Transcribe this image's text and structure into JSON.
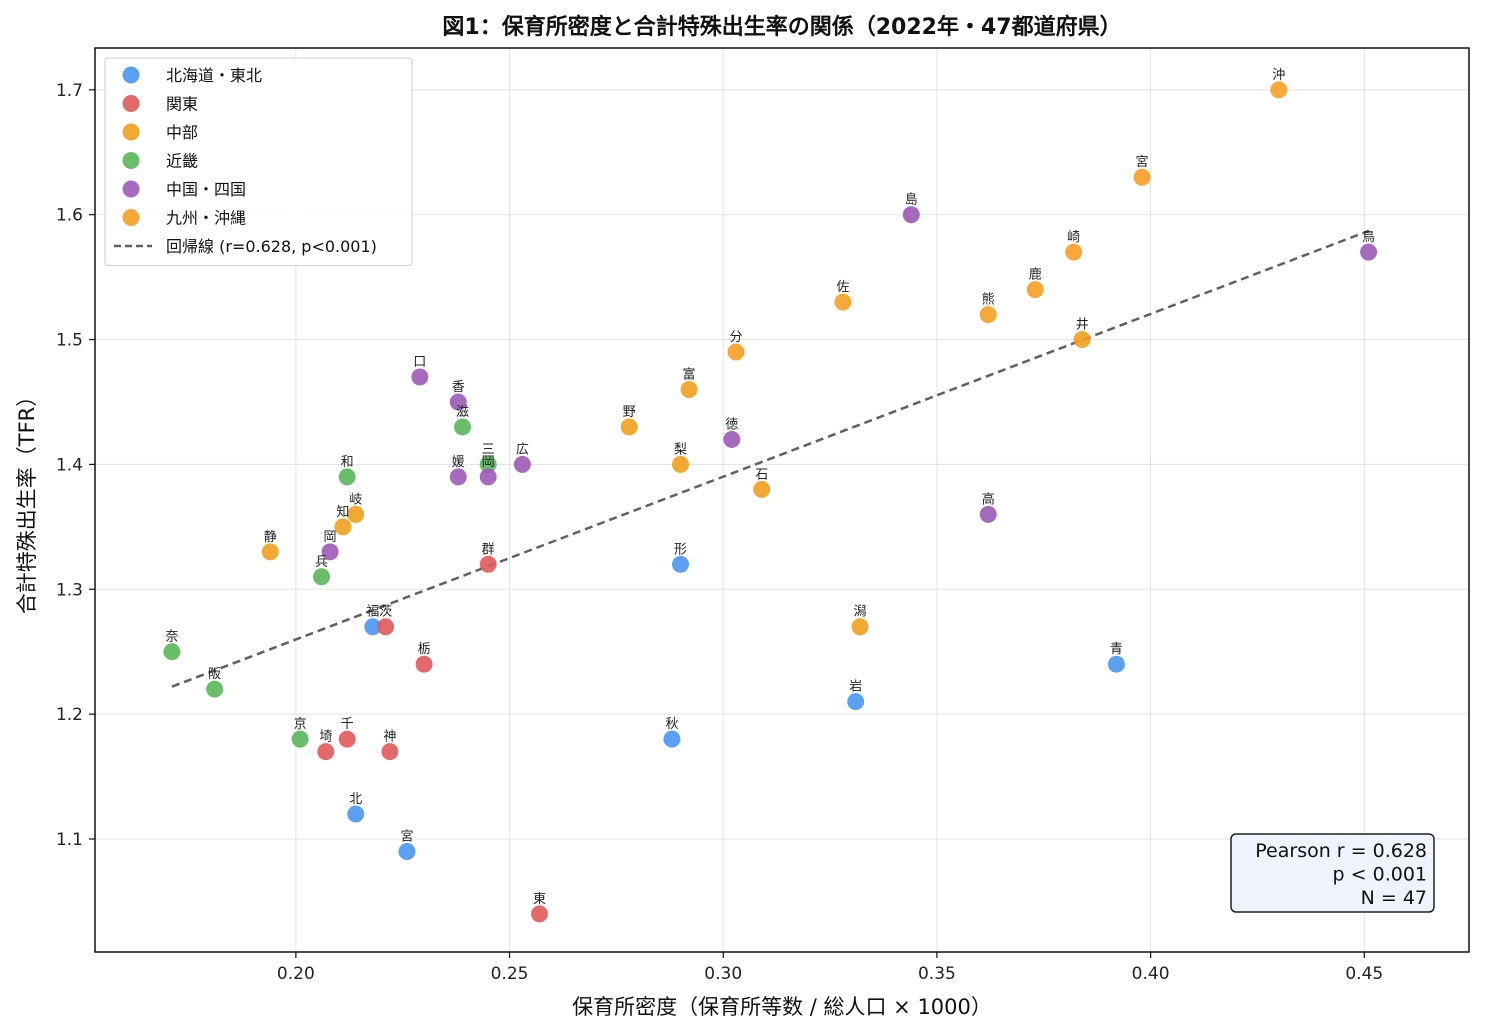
{
  "chart_data": {
    "type": "scatter",
    "title": "図1：保育所密度と合計特殊出生率の関係（2022年・47都道府県）",
    "xlabel": "保育所密度（保育所等数 / 総人口 × 1000）",
    "ylabel": "合計特殊出生率（TFR）",
    "xlim": [
      0.153,
      0.4745
    ],
    "ylim": [
      1.0095,
      1.7335
    ],
    "xticks": [
      0.2,
      0.25,
      0.3,
      0.35,
      0.4,
      0.45
    ],
    "xtick_labels": [
      "0.20",
      "0.25",
      "0.30",
      "0.35",
      "0.40",
      "0.45"
    ],
    "yticks": [
      1.1,
      1.2,
      1.3,
      1.4,
      1.5,
      1.6,
      1.7
    ],
    "ytick_labels": [
      "1.1",
      "1.2",
      "1.3",
      "1.4",
      "1.5",
      "1.6",
      "1.7"
    ],
    "grid": true,
    "legend_position": "top-left",
    "series": [
      {
        "name": "北海道・東北",
        "color": "#4a97ef",
        "points": [
          {
            "x": 0.214,
            "y": 1.12,
            "label": "北"
          },
          {
            "x": 0.392,
            "y": 1.24,
            "label": "青"
          },
          {
            "x": 0.331,
            "y": 1.21,
            "label": "岩"
          },
          {
            "x": 0.226,
            "y": 1.09,
            "label": "宮"
          },
          {
            "x": 0.288,
            "y": 1.18,
            "label": "秋"
          },
          {
            "x": 0.29,
            "y": 1.32,
            "label": "形"
          },
          {
            "x": 0.218,
            "y": 1.27,
            "label": "福"
          }
        ]
      },
      {
        "name": "関東",
        "color": "#e05a5a",
        "points": [
          {
            "x": 0.221,
            "y": 1.27,
            "label": "茨"
          },
          {
            "x": 0.23,
            "y": 1.24,
            "label": "栃"
          },
          {
            "x": 0.245,
            "y": 1.32,
            "label": "群"
          },
          {
            "x": 0.207,
            "y": 1.17,
            "label": "埼"
          },
          {
            "x": 0.212,
            "y": 1.18,
            "label": "千"
          },
          {
            "x": 0.257,
            "y": 1.04,
            "label": "東"
          },
          {
            "x": 0.222,
            "y": 1.17,
            "label": "神"
          }
        ]
      },
      {
        "name": "中部",
        "color": "#f0a01e",
        "points": [
          {
            "x": 0.332,
            "y": 1.27,
            "label": "潟"
          },
          {
            "x": 0.292,
            "y": 1.46,
            "label": "富"
          },
          {
            "x": 0.309,
            "y": 1.38,
            "label": "石"
          },
          {
            "x": 0.384,
            "y": 1.5,
            "label": "井"
          },
          {
            "x": 0.29,
            "y": 1.4,
            "label": "梨"
          },
          {
            "x": 0.278,
            "y": 1.43,
            "label": "野"
          },
          {
            "x": 0.214,
            "y": 1.36,
            "label": "岐"
          },
          {
            "x": 0.194,
            "y": 1.33,
            "label": "静"
          },
          {
            "x": 0.211,
            "y": 1.35,
            "label": "知"
          }
        ]
      },
      {
        "name": "近畿",
        "color": "#5ab75a",
        "points": [
          {
            "x": 0.245,
            "y": 1.4,
            "label": "三"
          },
          {
            "x": 0.239,
            "y": 1.43,
            "label": "滋"
          },
          {
            "x": 0.201,
            "y": 1.18,
            "label": "京"
          },
          {
            "x": 0.181,
            "y": 1.22,
            "label": "阪"
          },
          {
            "x": 0.206,
            "y": 1.31,
            "label": "兵"
          },
          {
            "x": 0.171,
            "y": 1.25,
            "label": "奈"
          },
          {
            "x": 0.212,
            "y": 1.39,
            "label": "和"
          }
        ]
      },
      {
        "name": "中国・四国",
        "color": "#9b59b6",
        "points": [
          {
            "x": 0.451,
            "y": 1.57,
            "label": "鳥"
          },
          {
            "x": 0.344,
            "y": 1.6,
            "label": "島"
          },
          {
            "x": 0.208,
            "y": 1.33,
            "label": "岡"
          },
          {
            "x": 0.253,
            "y": 1.4,
            "label": "広"
          },
          {
            "x": 0.229,
            "y": 1.47,
            "label": "口"
          },
          {
            "x": 0.302,
            "y": 1.42,
            "label": "徳"
          },
          {
            "x": 0.238,
            "y": 1.45,
            "label": "香"
          },
          {
            "x": 0.238,
            "y": 1.39,
            "label": "媛"
          },
          {
            "x": 0.362,
            "y": 1.36,
            "label": "高"
          },
          {
            "x": 0.245,
            "y": 1.39,
            "label": "岡"
          }
        ]
      },
      {
        "name": "九州・沖縄",
        "color": "#f5a023",
        "points": [
          {
            "x": 0.328,
            "y": 1.53,
            "label": "佐"
          },
          {
            "x": 0.382,
            "y": 1.57,
            "label": "崎"
          },
          {
            "x": 0.362,
            "y": 1.52,
            "label": "熊"
          },
          {
            "x": 0.303,
            "y": 1.49,
            "label": "分"
          },
          {
            "x": 0.398,
            "y": 1.63,
            "label": "宮"
          },
          {
            "x": 0.373,
            "y": 1.54,
            "label": "鹿"
          },
          {
            "x": 0.43,
            "y": 1.7,
            "label": "沖"
          }
        ]
      }
    ],
    "regression": {
      "name": "回帰線 (r=0.628, p<0.001)",
      "color": "#606060",
      "x": [
        0.171,
        0.451
      ],
      "y": [
        1.222,
        1.587
      ]
    },
    "stats_box": [
      "Pearson r = 0.628",
      "p < 0.001",
      "N = 47"
    ]
  }
}
